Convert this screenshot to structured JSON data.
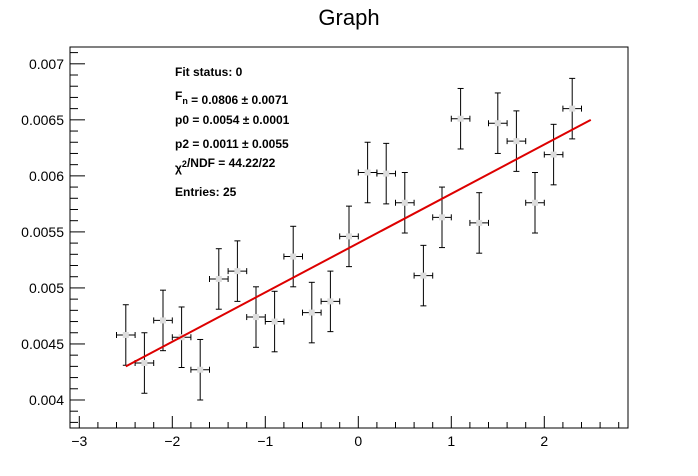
{
  "chart_data": {
    "type": "scatter",
    "title": "Graph",
    "xlabel": "",
    "ylabel": "",
    "xlim": [
      -3.1,
      2.9
    ],
    "ylim": [
      0.00375,
      0.00715
    ],
    "grid": false,
    "legend": "none",
    "x_ticks": [
      -3,
      -2,
      -1,
      0,
      1,
      2
    ],
    "x_tick_labels": [
      "−3",
      "−2",
      "−1",
      "0",
      "1",
      "2"
    ],
    "y_ticks": [
      0.004,
      0.0045,
      0.005,
      0.0055,
      0.006,
      0.0065,
      0.007
    ],
    "y_tick_labels": [
      "0.004",
      "0.0045",
      "0.005",
      "0.0055",
      "0.006",
      "0.0065",
      "0.007"
    ],
    "series": [
      {
        "x": [
          -2.5,
          -2.3,
          -2.1,
          -1.9,
          -1.7,
          -1.5,
          -1.3,
          -1.1,
          -0.9,
          -0.7,
          -0.5,
          -0.3,
          -0.1,
          0.1,
          0.3,
          0.5,
          0.7,
          0.9,
          1.1,
          1.3,
          1.5,
          1.7,
          1.9,
          2.1,
          2.3
        ],
        "y": [
          0.00458,
          0.00433,
          0.00471,
          0.00456,
          0.00427,
          0.00508,
          0.00515,
          0.00474,
          0.0047,
          0.00528,
          0.00478,
          0.00488,
          0.00546,
          0.00603,
          0.00602,
          0.00576,
          0.00511,
          0.00563,
          0.00651,
          0.00558,
          0.00647,
          0.00631,
          0.00576,
          0.00619,
          0.0066
        ],
        "x_err": 0.1,
        "y_err": 0.00027,
        "color": "#000000",
        "marker_color": "#dddddd"
      }
    ],
    "fit": {
      "x_range": [
        -2.5,
        2.5
      ],
      "p0": 0.0054,
      "p2": 0.0011,
      "color": "#dd0000"
    },
    "stats": [
      "Fit status: 0",
      "F_n = 0.0806   ± 0.0071",
      "p0 = 0.0054   ± 0.0001",
      "p2 = 0.0011   ± 0.0055",
      "χ²/NDF = 44.22/22",
      "Entries: 25"
    ],
    "stats_lines": [
      {
        "parts": [
          {
            "t": "Fit status: 0"
          }
        ]
      },
      {
        "parts": [
          {
            "t": "F"
          },
          {
            "t": "n",
            "sub": true
          },
          {
            "t": " = 0.0806   ± 0.0071"
          }
        ]
      },
      {
        "parts": [
          {
            "t": "p0 = 0.0054   ± 0.0001"
          }
        ]
      },
      {
        "parts": [
          {
            "t": "p2 = 0.0011   ± 0.0055"
          }
        ]
      },
      {
        "parts": [
          {
            "t": "χ"
          },
          {
            "t": "2",
            "sup": true
          },
          {
            "t": "/NDF = 44.22/22"
          }
        ]
      },
      {
        "parts": [
          {
            "t": "Entries: 25"
          }
        ]
      }
    ]
  }
}
